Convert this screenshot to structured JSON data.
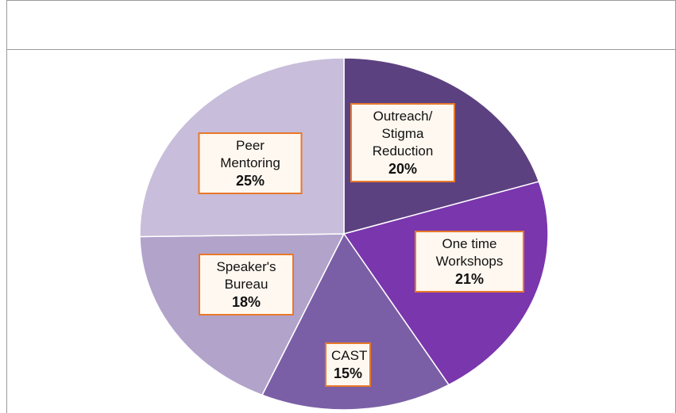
{
  "chart_data": {
    "type": "pie",
    "categories": [
      "Outreach/ Stigma Reduction",
      "One time Workshops",
      "CAST",
      "Speaker's Bureau",
      "Peer Mentoring"
    ],
    "values": [
      20,
      21,
      15,
      18,
      25
    ],
    "value_labels": [
      "20%",
      "21%",
      "15%",
      "18%",
      "25%"
    ],
    "colors": [
      "#5c4180",
      "#7a36ad",
      "#7b5fa6",
      "#b2a3cb",
      "#c8bdda"
    ]
  }
}
